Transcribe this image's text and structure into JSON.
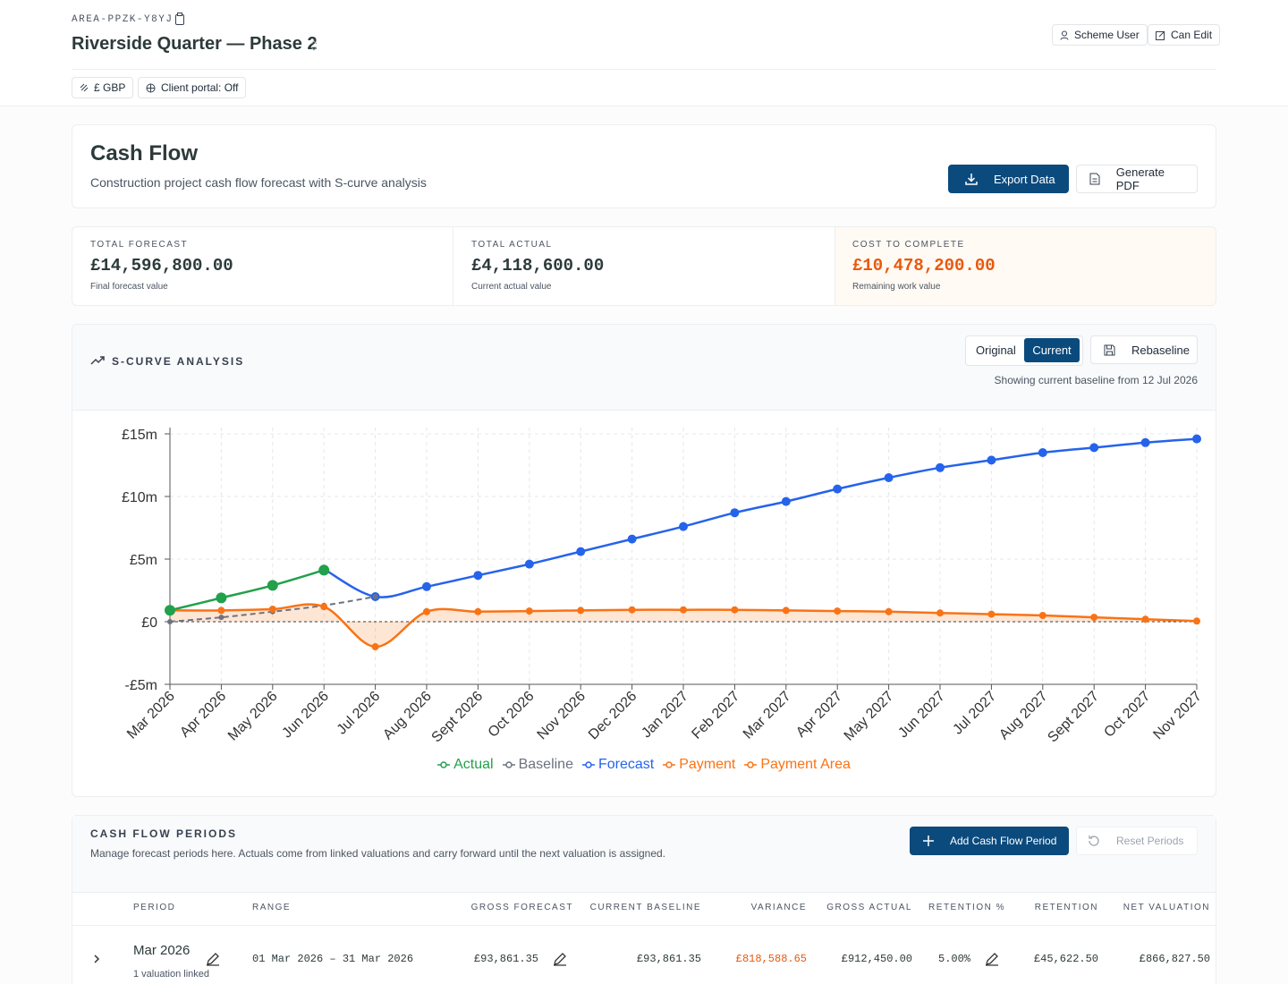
{
  "header": {
    "code": "AREA-PPZK-Y8YJ",
    "title": "Riverside Quarter — Phase 2",
    "user_button": "Scheme User",
    "edit_button": "Can Edit",
    "chips": [
      "£ GBP",
      "Client portal: Off"
    ]
  },
  "cash_flow": {
    "title": "Cash Flow",
    "subtitle": "Construction project cash flow forecast with S-curve analysis",
    "export_button": "Export Data",
    "pdf_button": "Generate PDF"
  },
  "stats": [
    {
      "label": "TOTAL FORECAST",
      "value": "£14,596,800.00",
      "note": "Final forecast value"
    },
    {
      "label": "TOTAL ACTUAL",
      "value": "£4,118,600.00",
      "note": "Current actual value"
    },
    {
      "label": "COST TO COMPLETE",
      "value": "£10,478,200.00",
      "note": "Remaining work value"
    }
  ],
  "s_curve": {
    "title": "S-CURVE ANALYSIS",
    "toggle": [
      "Original",
      "Current"
    ],
    "rebaseline_button": "Rebaseline",
    "baseline_note": "Showing current baseline from 12 Jul 2026"
  },
  "chart_data": {
    "type": "line",
    "categories": [
      "Mar 2026",
      "Apr 2026",
      "May 2026",
      "Jun 2026",
      "Jul 2026",
      "Aug 2026",
      "Sept 2026",
      "Oct 2026",
      "Nov 2026",
      "Dec 2026",
      "Jan 2027",
      "Feb 2027",
      "Mar 2027",
      "Apr 2027",
      "May 2027",
      "Jun 2027",
      "Jul 2027",
      "Aug 2027",
      "Sept 2027",
      "Oct 2027",
      "Nov 2027"
    ],
    "series": [
      {
        "name": "Actual",
        "color": "#22a04b",
        "values": [
          912450,
          1900000,
          2900000,
          4118600,
          null,
          null,
          null,
          null,
          null,
          null,
          null,
          null,
          null,
          null,
          null,
          null,
          null,
          null,
          null,
          null,
          null
        ]
      },
      {
        "name": "Baseline",
        "color": "#6b7280",
        "values": [
          0,
          350000,
          800000,
          1300000,
          2000000,
          null,
          null,
          null,
          null,
          null,
          null,
          null,
          null,
          null,
          null,
          null,
          null,
          null,
          null,
          null,
          null
        ]
      },
      {
        "name": "Forecast",
        "color": "#2563eb",
        "values": [
          null,
          null,
          null,
          4200000,
          2000000,
          2800000,
          3700000,
          4600000,
          5600000,
          6600000,
          7600000,
          8700000,
          9600000,
          10600000,
          11500000,
          12300000,
          12900000,
          13500000,
          13900000,
          14300000,
          14596800
        ]
      },
      {
        "name": "Payment",
        "color": "#f97316",
        "values": [
          900000,
          900000,
          1000000,
          1200000,
          -2000000,
          800000,
          800000,
          850000,
          900000,
          950000,
          950000,
          950000,
          900000,
          850000,
          800000,
          700000,
          600000,
          500000,
          350000,
          200000,
          50000
        ]
      },
      {
        "name": "Payment Area",
        "color": "#f97316",
        "values": [
          900000,
          900000,
          1000000,
          1200000,
          -2000000,
          800000,
          800000,
          850000,
          900000,
          950000,
          950000,
          950000,
          900000,
          850000,
          800000,
          700000,
          600000,
          500000,
          350000,
          200000,
          50000
        ]
      }
    ],
    "ylim": [
      -5000000,
      15500000
    ],
    "yticks": [
      {
        "value": -5000000,
        "label": "-£5m"
      },
      {
        "value": 0,
        "label": "£0"
      },
      {
        "value": 5000000,
        "label": "£5m"
      },
      {
        "value": 10000000,
        "label": "£10m"
      },
      {
        "value": 15000000,
        "label": "£15m"
      }
    ],
    "grid": true
  },
  "periods": {
    "title": "CASH FLOW PERIODS",
    "description": "Manage forecast periods here. Actuals come from linked valuations and carry forward until the next valuation is assigned.",
    "add_button": "Add Cash Flow Period",
    "reset_button": "Reset Periods",
    "table": {
      "columns": [
        "PERIOD",
        "RANGE",
        "GROSS FORECAST",
        "CURRENT BASELINE",
        "VARIANCE",
        "GROSS ACTUAL",
        "RETENTION %",
        "RETENTION",
        "NET VALUATION"
      ],
      "rows": [
        {
          "cells": [
            "Mar 2026",
            "01 Mar 2026 – 31 Mar 2026",
            "£93,861.35",
            "£93,861.35",
            "£818,588.65",
            "£912,450.00",
            "5.00%",
            "£45,622.50",
            "£866,827.50"
          ],
          "note": "1 valuation linked"
        }
      ]
    }
  }
}
